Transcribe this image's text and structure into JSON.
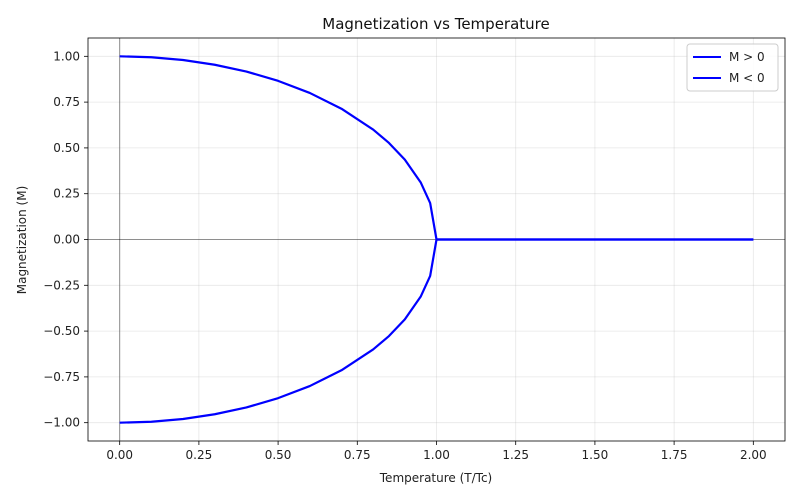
{
  "chart_data": {
    "type": "line",
    "title": "Magnetization vs Temperature",
    "xlabel": "Temperature (T/Tc)",
    "ylabel": "Magnetization (M)",
    "xlim": [
      -0.1,
      2.1
    ],
    "ylim": [
      -1.1,
      1.1
    ],
    "x_ticks": [
      0.0,
      0.25,
      0.5,
      0.75,
      1.0,
      1.25,
      1.5,
      1.75,
      2.0
    ],
    "x_tick_labels": [
      "0.00",
      "0.25",
      "0.50",
      "0.75",
      "1.00",
      "1.25",
      "1.50",
      "1.75",
      "2.00"
    ],
    "y_ticks": [
      1.0,
      0.75,
      0.5,
      0.25,
      0.0,
      -0.25,
      -0.5,
      -0.75,
      -1.0
    ],
    "y_tick_labels": [
      "1.00",
      "0.75",
      "0.50",
      "0.25",
      "0.00",
      "−0.25",
      "−0.50",
      "−0.75",
      "−1.00"
    ],
    "grid": true,
    "legend_position": "top-right",
    "reference_lines": {
      "x": 0,
      "y": 0
    },
    "series": [
      {
        "name": "M > 0",
        "color": "#0000ff",
        "x": [
          0.0,
          0.1,
          0.2,
          0.3,
          0.4,
          0.5,
          0.6,
          0.7,
          0.8,
          0.85,
          0.9,
          0.95,
          0.98,
          1.0,
          1.25,
          1.5,
          1.75,
          2.0
        ],
        "y": [
          1.0,
          0.995,
          0.98,
          0.954,
          0.917,
          0.866,
          0.8,
          0.714,
          0.6,
          0.527,
          0.436,
          0.312,
          0.199,
          0.0,
          0.0,
          0.0,
          0.0,
          0.0
        ]
      },
      {
        "name": "M < 0",
        "color": "#0000ff",
        "x": [
          0.0,
          0.1,
          0.2,
          0.3,
          0.4,
          0.5,
          0.6,
          0.7,
          0.8,
          0.85,
          0.9,
          0.95,
          0.98,
          1.0,
          1.25,
          1.5,
          1.75,
          2.0
        ],
        "y": [
          -1.0,
          -0.995,
          -0.98,
          -0.954,
          -0.917,
          -0.866,
          -0.8,
          -0.714,
          -0.6,
          -0.527,
          -0.436,
          -0.312,
          -0.199,
          0.0,
          0.0,
          0.0,
          0.0,
          0.0
        ]
      }
    ]
  }
}
